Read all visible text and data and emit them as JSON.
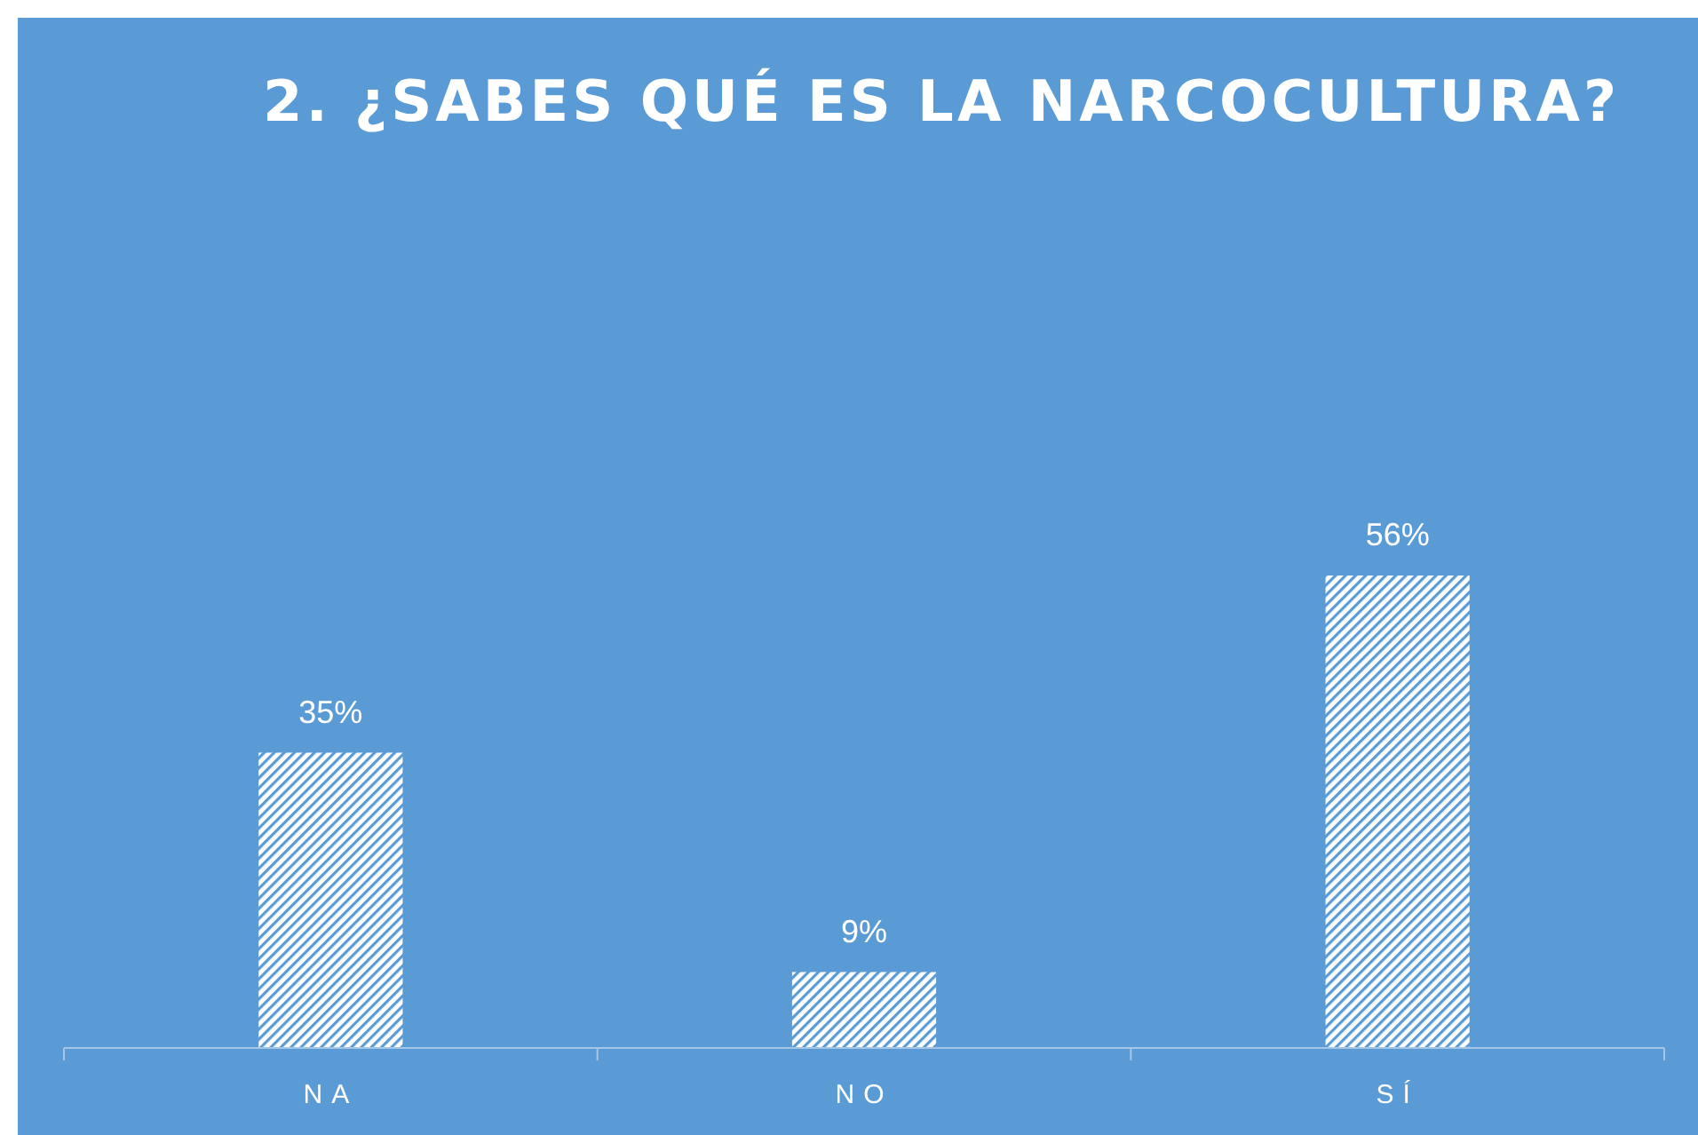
{
  "chart_data": {
    "type": "bar",
    "title": "2. ¿SABES QUÉ ES LA NARCOCULTURA?",
    "categories": [
      "NA",
      "NO",
      "SÍ"
    ],
    "values": [
      35,
      9,
      56
    ],
    "color": "#ffffff",
    "data_labels": true,
    "value_labels": [
      "35%",
      "9%",
      "56%"
    ]
  }
}
